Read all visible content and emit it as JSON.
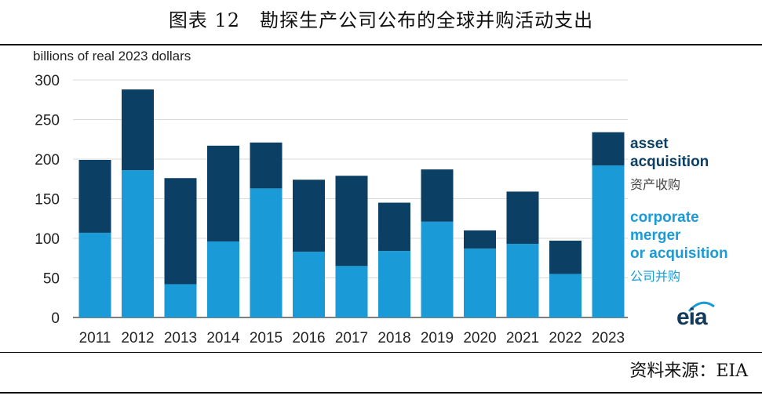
{
  "caption": "图表 12　勘探生产公司公布的全球并购活动支出",
  "source": "资料来源：EIA",
  "logo_text": "eia",
  "chart_data": {
    "type": "bar",
    "stacked": true,
    "unit_label": "billions of real 2023 dollars",
    "categories": [
      "2011",
      "2012",
      "2013",
      "2014",
      "2015",
      "2016",
      "2017",
      "2018",
      "2019",
      "2020",
      "2021",
      "2022",
      "2023"
    ],
    "series": [
      {
        "name": "corporate merger or acquisition",
        "name_cn": "公司并购",
        "color": "#1a9bd7",
        "values": [
          107,
          186,
          42,
          96,
          163,
          83,
          65,
          84,
          121,
          87,
          93,
          55,
          192
        ]
      },
      {
        "name": "asset acquisition",
        "name_cn": "资产收购",
        "color": "#0b3f63",
        "values": [
          92,
          102,
          134,
          121,
          58,
          91,
          114,
          61,
          66,
          23,
          66,
          42,
          42
        ]
      }
    ],
    "ylim": [
      0,
      300
    ],
    "yticks": [
      0,
      50,
      100,
      150,
      200,
      250,
      300
    ],
    "grid": true,
    "legend_position": "right"
  },
  "legend": {
    "asset_line1": "asset",
    "asset_line2": "acquisition",
    "asset_cn": "资产收购",
    "corp_line1": "corporate",
    "corp_line2": "merger",
    "corp_line3": "or acquisition",
    "corp_cn": "公司并购"
  }
}
